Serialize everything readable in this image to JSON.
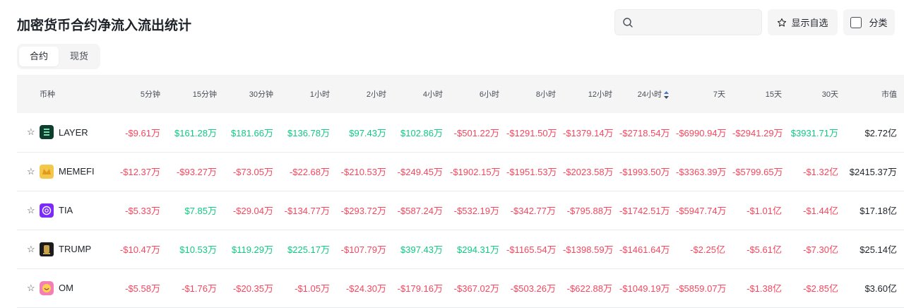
{
  "page": {
    "title": "加密货币合约净流入流出统计"
  },
  "toolbar": {
    "search_placeholder": "",
    "favorites_label": "显示自选",
    "category_label": "分类"
  },
  "tabs": [
    {
      "label": "合约",
      "active": true
    },
    {
      "label": "现货",
      "active": false
    }
  ],
  "colors": {
    "negative": "#f6465d",
    "positive": "#0ecb81",
    "header_bg": "#f5f5f5"
  },
  "table": {
    "columns": [
      "币种",
      "5分钟",
      "15分钟",
      "30分钟",
      "1小时",
      "2小时",
      "4小时",
      "6小时",
      "8小时",
      "12小时",
      "24小时",
      "7天",
      "15天",
      "30天",
      "市值"
    ],
    "sorted_column": "24小时",
    "rows": [
      {
        "symbol": "LAYER",
        "logo": "layer-logo-icon",
        "values": [
          "-$9.61万",
          "$161.28万",
          "$181.66万",
          "$136.78万",
          "$97.43万",
          "$102.86万",
          "-$501.22万",
          "-$1291.50万",
          "-$1379.14万",
          "-$2718.54万",
          "-$6990.94万",
          "-$2941.29万",
          "$3931.71万"
        ],
        "market_cap": "$2.72亿"
      },
      {
        "symbol": "MEMEFI",
        "logo": "memefi-logo-icon",
        "values": [
          "-$12.37万",
          "-$93.27万",
          "-$73.05万",
          "-$22.68万",
          "-$210.53万",
          "-$249.45万",
          "-$1902.15万",
          "-$1951.53万",
          "-$2023.58万",
          "-$1993.50万",
          "-$3363.39万",
          "-$5799.65万",
          "-$1.32亿"
        ],
        "market_cap": "$2415.37万"
      },
      {
        "symbol": "TIA",
        "logo": "tia-logo-icon",
        "values": [
          "-$5.33万",
          "$7.85万",
          "-$29.04万",
          "-$134.77万",
          "-$293.72万",
          "-$587.24万",
          "-$532.19万",
          "-$342.77万",
          "-$795.88万",
          "-$1742.51万",
          "-$5947.74万",
          "-$1.01亿",
          "-$1.44亿"
        ],
        "market_cap": "$17.18亿"
      },
      {
        "symbol": "TRUMP",
        "logo": "trump-logo-icon",
        "values": [
          "-$10.47万",
          "$10.53万",
          "$119.29万",
          "$225.17万",
          "-$107.79万",
          "$397.43万",
          "$294.31万",
          "-$1165.54万",
          "-$1398.59万",
          "-$1461.64万",
          "-$2.25亿",
          "-$5.61亿",
          "-$7.30亿"
        ],
        "market_cap": "$25.14亿"
      },
      {
        "symbol": "OM",
        "logo": "om-logo-icon",
        "values": [
          "-$5.58万",
          "-$1.76万",
          "-$20.35万",
          "-$1.05万",
          "-$24.30万",
          "-$179.16万",
          "-$367.02万",
          "-$503.26万",
          "-$622.88万",
          "-$1049.19万",
          "-$5859.07万",
          "-$1.38亿",
          "-$2.85亿"
        ],
        "market_cap": "$3.60亿"
      }
    ]
  }
}
